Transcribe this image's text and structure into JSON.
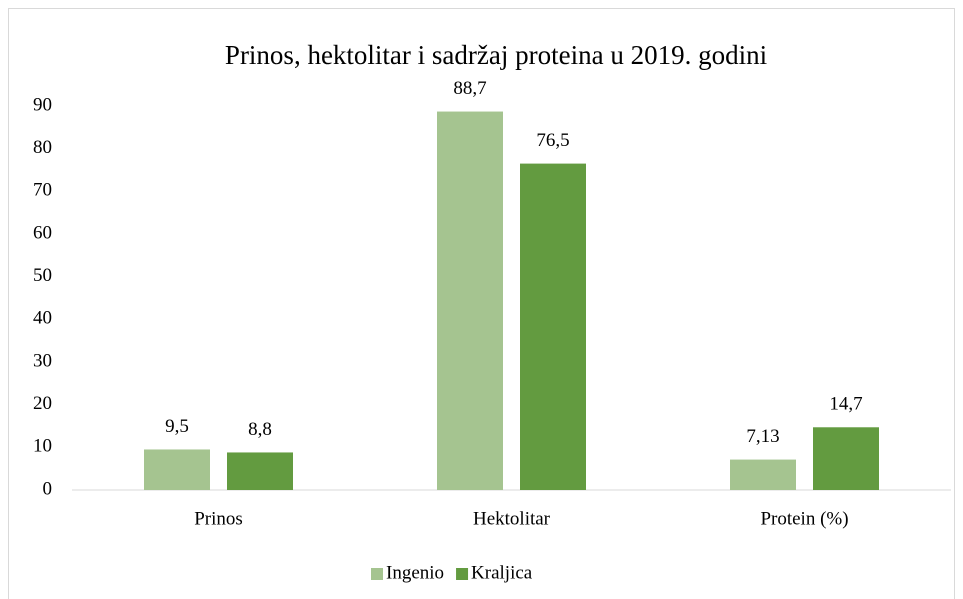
{
  "chart_data": {
    "type": "bar",
    "title": "Prinos, hektolitar i sadržaj proteina u 2019. godini",
    "categories": [
      "Prinos",
      "Hektolitar",
      "Protein (%)"
    ],
    "series": [
      {
        "name": "Ingenio",
        "color": "#a5c490",
        "values": [
          9.5,
          88.7,
          7.13
        ],
        "value_labels": [
          "9,5",
          "88,7",
          "7,13"
        ]
      },
      {
        "name": "Kraljica",
        "color": "#639b40",
        "values": [
          8.8,
          76.5,
          14.7
        ],
        "value_labels": [
          "8,8",
          "76,5",
          "14,7"
        ]
      }
    ],
    "ylim": [
      0,
      90
    ],
    "yticks": [
      0,
      10,
      20,
      30,
      40,
      50,
      60,
      70,
      80,
      90
    ],
    "grid": false,
    "legend": "bottom"
  }
}
